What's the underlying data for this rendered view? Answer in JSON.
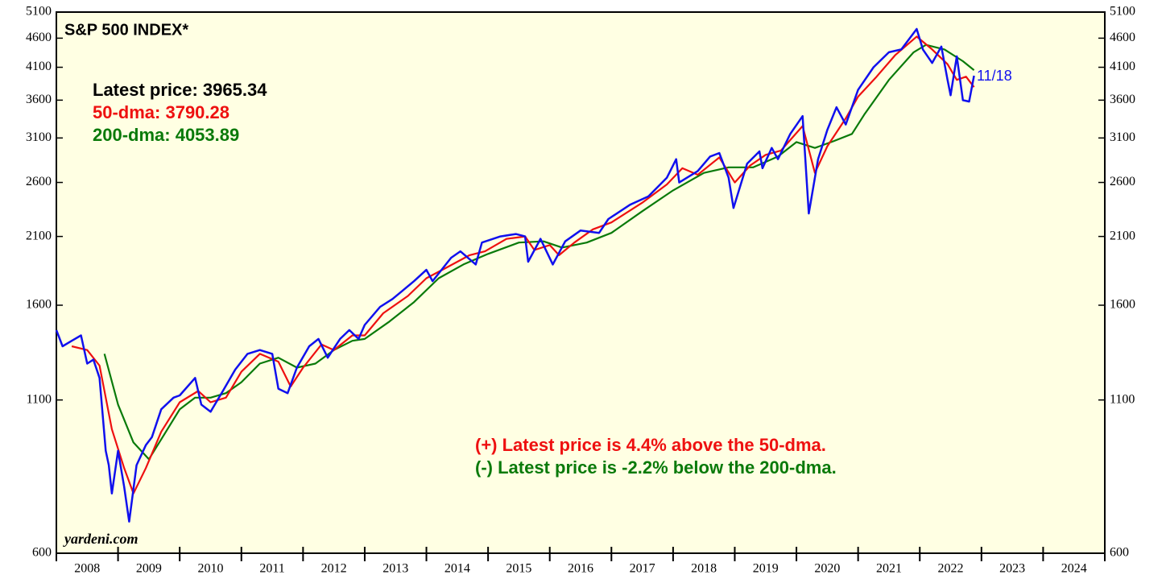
{
  "chart_data": {
    "type": "line",
    "title": "S&P 500 INDEX*",
    "notes": [
      "Latest price: 3965.34",
      "50-dma: 3790.28",
      "200-dma: 4053.89"
    ],
    "annotations": [
      "(+) Latest price is 4.4% above the 50-dma.",
      "(-) Latest price is -2.2% below the 200-dma."
    ],
    "end_label": "11/18",
    "source": "yardeni.com",
    "log_scale": true,
    "categories": [
      "2008",
      "2009",
      "2010",
      "2011",
      "2012",
      "2013",
      "2014",
      "2015",
      "2016",
      "2017",
      "2018",
      "2019",
      "2020",
      "2021",
      "2022",
      "2023",
      "2024"
    ],
    "xlim": [
      2008,
      2025
    ],
    "xticks": [
      2008,
      2009,
      2010,
      2011,
      2012,
      2013,
      2014,
      2015,
      2016,
      2017,
      2018,
      2019,
      2020,
      2021,
      2022,
      2023,
      2024,
      2025
    ],
    "ylim": [
      600,
      5100
    ],
    "yticks": [
      600,
      1100,
      1600,
      2100,
      2600,
      3100,
      3600,
      4100,
      4600,
      5100
    ],
    "series": [
      {
        "color": "#1010ee",
        "x": [
          2008.0,
          2008.1,
          2008.25,
          2008.4,
          2008.5,
          2008.6,
          2008.7,
          2008.8,
          2008.85,
          2008.9,
          2009.0,
          2009.1,
          2009.18,
          2009.3,
          2009.45,
          2009.55,
          2009.7,
          2009.9,
          2010.0,
          2010.25,
          2010.35,
          2010.5,
          2010.7,
          2010.9,
          2011.1,
          2011.3,
          2011.5,
          2011.6,
          2011.75,
          2011.9,
          2012.1,
          2012.25,
          2012.4,
          2012.6,
          2012.75,
          2012.9,
          2013.0,
          2013.25,
          2013.45,
          2013.6,
          2013.8,
          2014.0,
          2014.1,
          2014.4,
          2014.55,
          2014.8,
          2014.9,
          2015.2,
          2015.45,
          2015.6,
          2015.65,
          2015.85,
          2016.05,
          2016.25,
          2016.5,
          2016.8,
          2016.95,
          2017.3,
          2017.6,
          2017.9,
          2018.05,
          2018.1,
          2018.4,
          2018.6,
          2018.75,
          2018.9,
          2018.98,
          2019.2,
          2019.4,
          2019.45,
          2019.6,
          2019.7,
          2019.9,
          2020.1,
          2020.2,
          2020.35,
          2020.5,
          2020.65,
          2020.8,
          2021.0,
          2021.25,
          2021.5,
          2021.7,
          2021.95,
          2022.05,
          2022.2,
          2022.35,
          2022.45,
          2022.5,
          2022.6,
          2022.7,
          2022.8,
          2022.88
        ],
        "values": [
          1450,
          1360,
          1390,
          1420,
          1270,
          1290,
          1200,
          900,
          850,
          760,
          900,
          780,
          680,
          850,
          920,
          950,
          1060,
          1110,
          1120,
          1200,
          1080,
          1050,
          1140,
          1240,
          1320,
          1340,
          1320,
          1150,
          1130,
          1250,
          1360,
          1400,
          1300,
          1400,
          1450,
          1400,
          1480,
          1590,
          1640,
          1690,
          1760,
          1840,
          1760,
          1930,
          1980,
          1880,
          2050,
          2100,
          2120,
          2100,
          1900,
          2080,
          1880,
          2060,
          2150,
          2130,
          2250,
          2380,
          2460,
          2650,
          2850,
          2600,
          2720,
          2880,
          2920,
          2650,
          2350,
          2800,
          2940,
          2750,
          2980,
          2850,
          3150,
          3380,
          2300,
          2850,
          3200,
          3500,
          3270,
          3750,
          4100,
          4350,
          4400,
          4770,
          4400,
          4170,
          4450,
          3900,
          3670,
          4280,
          3600,
          3580,
          3965.34
        ]
      },
      {
        "color": "#ee1010",
        "x": [
          2008.25,
          2008.5,
          2008.7,
          2008.9,
          2009.1,
          2009.25,
          2009.45,
          2009.7,
          2010.0,
          2010.3,
          2010.5,
          2010.75,
          2011.0,
          2011.3,
          2011.6,
          2011.8,
          2012.0,
          2012.3,
          2012.5,
          2012.8,
          2013.0,
          2013.3,
          2013.7,
          2014.0,
          2014.3,
          2014.7,
          2014.95,
          2015.3,
          2015.6,
          2015.75,
          2016.0,
          2016.15,
          2016.4,
          2016.7,
          2017.0,
          2017.5,
          2017.9,
          2018.15,
          2018.4,
          2018.75,
          2019.0,
          2019.25,
          2019.5,
          2019.75,
          2020.1,
          2020.3,
          2020.5,
          2020.8,
          2021.0,
          2021.3,
          2021.6,
          2021.95,
          2022.2,
          2022.45,
          2022.6,
          2022.75,
          2022.88
        ],
        "values": [
          1360,
          1340,
          1260,
          980,
          840,
          760,
          840,
          970,
          1090,
          1140,
          1090,
          1110,
          1230,
          1320,
          1280,
          1160,
          1250,
          1370,
          1340,
          1420,
          1420,
          1550,
          1660,
          1780,
          1850,
          1950,
          1980,
          2080,
          2100,
          1990,
          2030,
          1950,
          2050,
          2160,
          2220,
          2400,
          2580,
          2750,
          2680,
          2870,
          2600,
          2780,
          2900,
          2950,
          3250,
          2700,
          3000,
          3350,
          3650,
          3950,
          4300,
          4630,
          4400,
          4150,
          3900,
          3950,
          3790.28
        ]
      },
      {
        "color": "#0a7a0a",
        "x": [
          2008.78,
          2009.0,
          2009.25,
          2009.5,
          2009.75,
          2010.0,
          2010.25,
          2010.5,
          2010.75,
          2011.0,
          2011.3,
          2011.6,
          2011.9,
          2012.2,
          2012.5,
          2012.8,
          2013.0,
          2013.4,
          2013.8,
          2014.2,
          2014.6,
          2015.0,
          2015.5,
          2015.9,
          2016.2,
          2016.6,
          2017.0,
          2017.5,
          2018.0,
          2018.5,
          2018.9,
          2019.3,
          2019.7,
          2020.0,
          2020.3,
          2020.6,
          2020.9,
          2021.1,
          2021.5,
          2021.9,
          2022.1,
          2022.4,
          2022.7,
          2022.88
        ],
        "values": [
          1320,
          1080,
          930,
          870,
          960,
          1060,
          1110,
          1110,
          1130,
          1180,
          1270,
          1300,
          1250,
          1270,
          1340,
          1390,
          1400,
          1500,
          1620,
          1780,
          1880,
          1960,
          2050,
          2060,
          2010,
          2050,
          2130,
          2320,
          2520,
          2700,
          2760,
          2760,
          2880,
          3050,
          2980,
          3060,
          3150,
          3400,
          3900,
          4350,
          4480,
          4400,
          4200,
          4053.89
        ]
      }
    ]
  }
}
